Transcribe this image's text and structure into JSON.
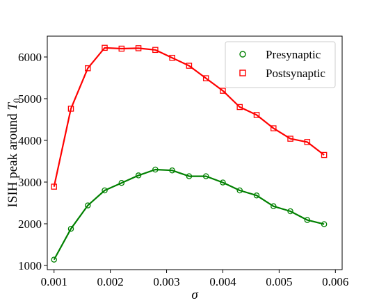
{
  "chart_data": {
    "type": "line",
    "xlabel": "σ",
    "ylabel": "ISIH peak around T0",
    "ylabel_main": "ISIH peak around ",
    "ylabel_sym": "T",
    "ylabel_sub": "0",
    "xlim": [
      0.00088,
      0.00612
    ],
    "ylim": [
      900,
      6500
    ],
    "xticks": [
      0.001,
      0.002,
      0.003,
      0.004,
      0.005,
      0.006
    ],
    "xtick_labels": [
      "0.001",
      "0.002",
      "0.003",
      "0.004",
      "0.005",
      "0.006"
    ],
    "yticks": [
      1000,
      2000,
      3000,
      4000,
      5000,
      6000
    ],
    "ytick_labels": [
      "1000",
      "2000",
      "3000",
      "4000",
      "5000",
      "6000"
    ],
    "legend_position": "top-right",
    "x": [
      0.001,
      0.0013,
      0.0016,
      0.0019,
      0.0022,
      0.0025,
      0.0028,
      0.0031,
      0.0034,
      0.0037,
      0.004,
      0.0043,
      0.0046,
      0.0049,
      0.0052,
      0.0055,
      0.0058
    ],
    "series": [
      {
        "name": "Presynaptic",
        "color": "#008000",
        "marker": "circle",
        "values": [
          1140,
          1880,
          2440,
          2800,
          2980,
          3160,
          3300,
          3280,
          3140,
          3140,
          2990,
          2800,
          2680,
          2420,
          2300,
          2090,
          1990
        ]
      },
      {
        "name": "Postsynaptic",
        "color": "#ff0000",
        "marker": "square",
        "values": [
          2890,
          4760,
          5730,
          6220,
          6200,
          6210,
          6170,
          5980,
          5790,
          5490,
          5190,
          4800,
          4610,
          4290,
          4040,
          3960,
          3650
        ]
      }
    ]
  }
}
